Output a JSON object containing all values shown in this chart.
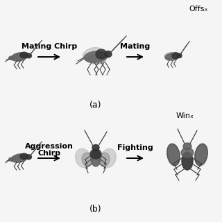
{
  "bg_color": "#f5f5f5",
  "top_labels": {
    "arrow1_text": "Mating Chirp",
    "arrow2_text": "Mating",
    "label_a": "(a)",
    "offs_text": "Offsₓ"
  },
  "bottom_labels": {
    "arrow1_line1": "Aggression",
    "arrow1_line2": "Chirp",
    "arrow2_text": "Fighting",
    "label_b": "(b)",
    "win_text": "Winₓ"
  },
  "cricket_color": "#606060",
  "cricket_dark": "#303030",
  "cricket_light": "#909090",
  "wing_color": "#808080",
  "wing_light": "#b0b0b0",
  "leg_color": "#404040",
  "antenna_color": "#404040",
  "arrow_color": "#000000",
  "text_color": "#000000",
  "label_fontsize": 8,
  "arrow_label_fontsize": 8,
  "sub_label_fontsize": 9
}
